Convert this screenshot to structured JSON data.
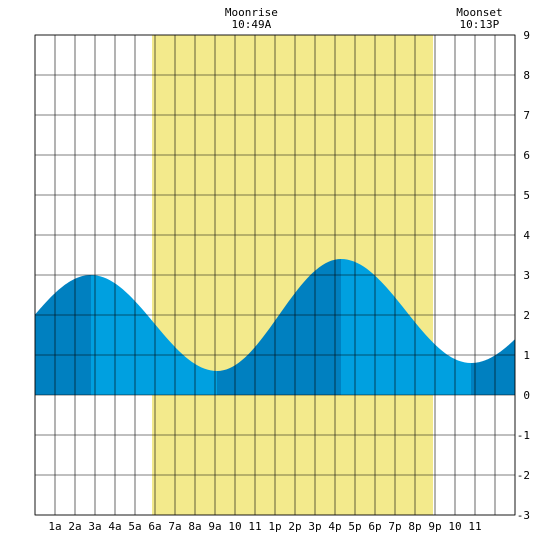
{
  "chart_data": {
    "type": "area",
    "title": "",
    "xlabel": "",
    "ylabel": "",
    "xlim": [
      0,
      24
    ],
    "ylim": [
      -3,
      9
    ],
    "grid": true,
    "x_tick_labels": [
      "1a",
      "2a",
      "3a",
      "4a",
      "5a",
      "6a",
      "7a",
      "8a",
      "9a",
      "10",
      "11",
      "1p",
      "2p",
      "3p",
      "4p",
      "5p",
      "6p",
      "7p",
      "8p",
      "9p",
      "10",
      "11"
    ],
    "y_tick_labels": [
      "9",
      "8",
      "7",
      "6",
      "5",
      "4",
      "3",
      "2",
      "1",
      "0",
      "-1",
      "-2",
      "-3"
    ],
    "y_tick_values": [
      9,
      8,
      7,
      6,
      5,
      4,
      3,
      2,
      1,
      0,
      -1,
      -2,
      -3
    ],
    "daylight": {
      "start": 5.85,
      "end": 19.9
    },
    "moonrise": {
      "label": "Moonrise",
      "time": "10:49A",
      "hour": 10.82
    },
    "moonset": {
      "label": "Moonset",
      "time": "10:13P",
      "hour": 22.22
    },
    "tide_extremes": [
      {
        "hour": 2.8,
        "height": 3.0,
        "kind": "high"
      },
      {
        "hour": 9.1,
        "height": 0.6,
        "kind": "low"
      },
      {
        "hour": 15.3,
        "height": 3.4,
        "kind": "high"
      },
      {
        "hour": 21.8,
        "height": 0.8,
        "kind": "low"
      }
    ],
    "series": [
      {
        "values_at_edges": {
          "start": 2.1,
          "end": 1.6
        }
      }
    ],
    "colors": {
      "daylight": "#f3ea8c",
      "tide_rising": "#0080c0",
      "tide_falling": "#00a0e0",
      "grid": "#000000",
      "frame_bg": "#ffffff"
    }
  }
}
